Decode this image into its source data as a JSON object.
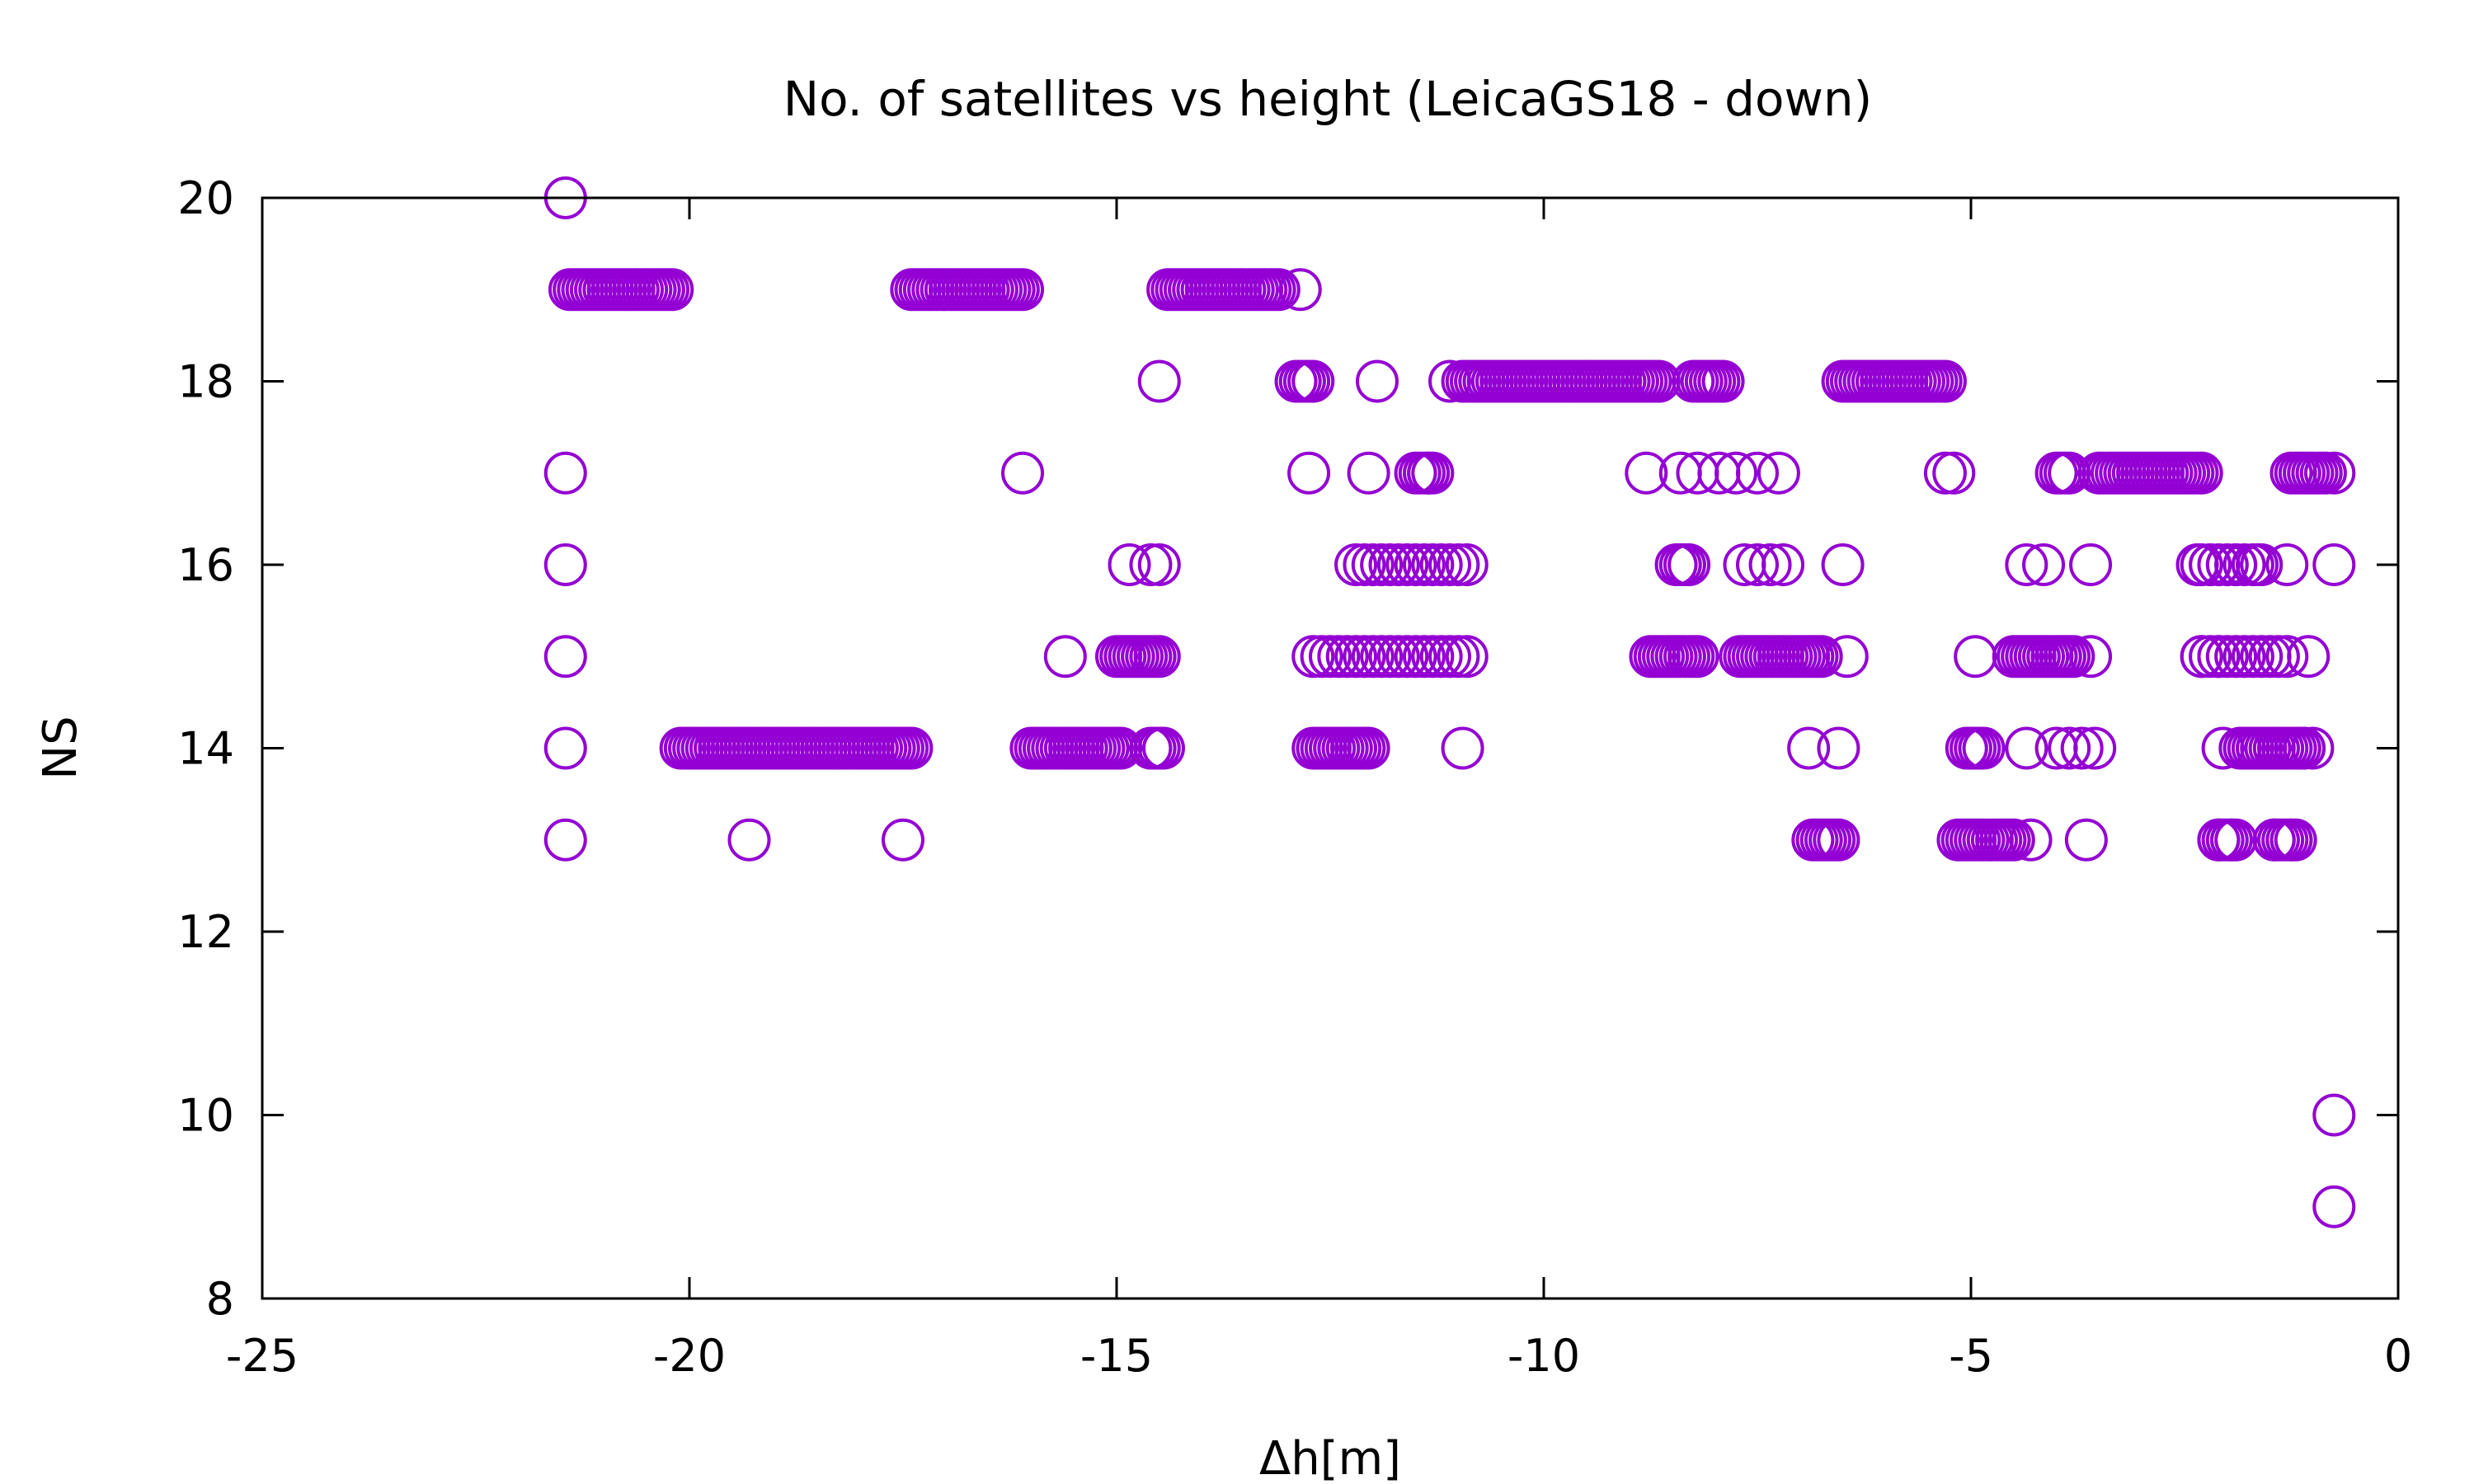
{
  "chart_data": {
    "type": "scatter",
    "title": "No. of satellites vs height (LeicaGS18 - down)",
    "xlabel": "Δh[m]",
    "ylabel": "NS",
    "xlim": [
      -25,
      0
    ],
    "ylim": [
      8,
      20
    ],
    "xticks": [
      -25,
      -20,
      -15,
      -10,
      -5,
      0
    ],
    "yticks": [
      8,
      10,
      12,
      14,
      16,
      18,
      20
    ],
    "grid": false,
    "legend": "none",
    "marker": "open-circle",
    "color": "#9400d3",
    "series": [
      {
        "points": [
          [
            -21.45,
            20
          ],
          [
            -21.45,
            17
          ],
          [
            -21.45,
            16
          ],
          [
            -21.45,
            15
          ],
          [
            -21.45,
            14
          ],
          [
            -21.45,
            13
          ],
          [
            -19.3,
            13
          ],
          [
            -17.5,
            13
          ],
          [
            -16.1,
            17
          ],
          [
            -15.6,
            15
          ],
          [
            -14.5,
            18
          ],
          [
            -12.85,
            19
          ],
          [
            -14.85,
            16
          ],
          [
            -14.6,
            16
          ],
          [
            -14.5,
            16
          ],
          [
            -12.75,
            17
          ],
          [
            -12.05,
            17
          ],
          [
            -11.95,
            18
          ],
          [
            -11.1,
            18
          ],
          [
            -11.5,
            17
          ],
          [
            -11.35,
            17
          ],
          [
            -10.95,
            14
          ],
          [
            -8.8,
            17
          ],
          [
            -8.4,
            17
          ],
          [
            -8.2,
            17
          ],
          [
            -7.95,
            17
          ],
          [
            -7.75,
            17
          ],
          [
            -7.5,
            17
          ],
          [
            -7.25,
            17
          ],
          [
            -6.9,
            14
          ],
          [
            -6.55,
            14
          ],
          [
            -6.5,
            16
          ],
          [
            -6.45,
            15
          ],
          [
            -5.3,
            17
          ],
          [
            -5.2,
            17
          ],
          [
            -4.95,
            15
          ],
          [
            -4.15,
            16
          ],
          [
            -4.35,
            16
          ],
          [
            -3.6,
            16
          ],
          [
            -4.35,
            14
          ],
          [
            -4.0,
            14
          ],
          [
            -3.85,
            14
          ],
          [
            -3.7,
            14
          ],
          [
            -3.55,
            14
          ],
          [
            -4.3,
            13
          ],
          [
            -3.65,
            13
          ],
          [
            -3.6,
            15
          ],
          [
            -2.35,
            16
          ],
          [
            -2.2,
            16
          ],
          [
            -1.9,
            16
          ],
          [
            -1.65,
            16
          ],
          [
            -1.3,
            16
          ],
          [
            -2.3,
            15
          ],
          [
            -2.1,
            15
          ],
          [
            -1.05,
            15
          ],
          [
            -2.05,
            14
          ],
          [
            -1.1,
            14
          ],
          [
            -1.0,
            14
          ],
          [
            -2.1,
            13
          ],
          [
            -1.95,
            13
          ],
          [
            -1.45,
            13
          ],
          [
            -1.25,
            13
          ],
          [
            -0.75,
            17
          ],
          [
            -0.75,
            16
          ],
          [
            -0.75,
            10
          ],
          [
            -0.75,
            9
          ]
        ]
      }
    ]
  }
}
